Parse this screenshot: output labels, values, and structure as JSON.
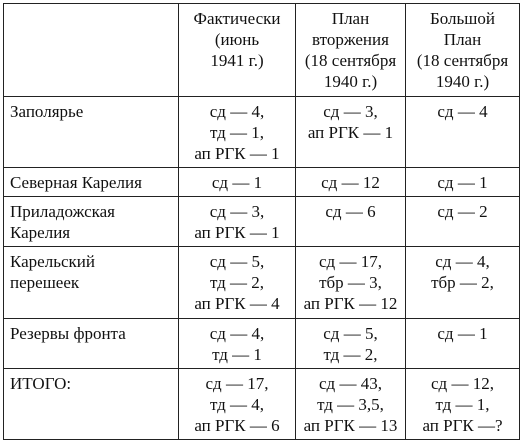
{
  "table": {
    "headers": [
      [],
      [
        "Фактически",
        "(июнь",
        "1941 г.)"
      ],
      [
        "План",
        "вторжения",
        "(18 сентября",
        "1940 г.)"
      ],
      [
        "Большой",
        "План",
        "(18 сентября",
        "1940 г.)"
      ]
    ],
    "rows": [
      {
        "label": [
          "Заполярье"
        ],
        "cells": [
          [
            "сд — 4,",
            "тд — 1,",
            "ап РГК — 1"
          ],
          [
            "сд — 3,",
            "ап РГК — 1"
          ],
          [
            "сд — 4"
          ]
        ]
      },
      {
        "label": [
          "Северная Карелия"
        ],
        "cells": [
          [
            "сд — 1"
          ],
          [
            "сд — 12"
          ],
          [
            "сд — 1"
          ]
        ]
      },
      {
        "label": [
          "Приладожская",
          "Карелия"
        ],
        "cells": [
          [
            "сд — 3,",
            "ап РГК — 1"
          ],
          [
            "сд — 6"
          ],
          [
            "сд — 2"
          ]
        ]
      },
      {
        "label": [
          "Карельский",
          "перешеек"
        ],
        "cells": [
          [
            "сд — 5,",
            "тд — 2,",
            "ап РГК — 4"
          ],
          [
            "сд — 17,",
            "тбр — 3,",
            "ап РГК — 12"
          ],
          [
            "сд — 4,",
            "тбр — 2,"
          ]
        ]
      },
      {
        "label": [
          "Резервы фронта"
        ],
        "cells": [
          [
            "сд — 4,",
            "тд — 1"
          ],
          [
            "сд — 5,",
            "тд — 2,"
          ],
          [
            "сд — 1"
          ]
        ]
      },
      {
        "label": [
          "ИТОГО:"
        ],
        "cells": [
          [
            "сд — 17,",
            "тд — 4,",
            "ап РГК — 6"
          ],
          [
            "сд — 43,",
            "тд — 3,5,",
            "ап РГК — 13"
          ],
          [
            "сд — 12,",
            "тд — 1,",
            "ап РГК —?"
          ]
        ]
      }
    ]
  }
}
